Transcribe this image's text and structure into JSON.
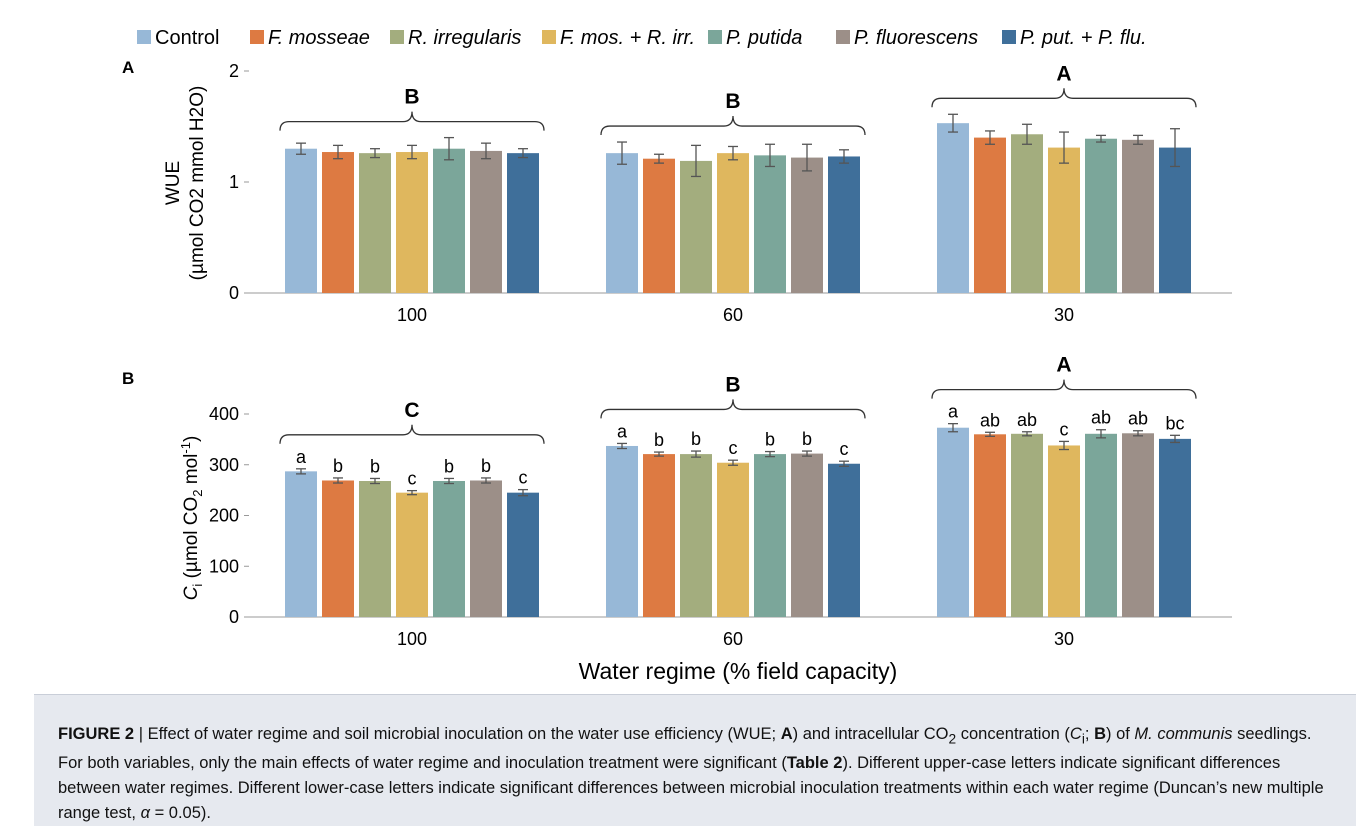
{
  "legend": [
    {
      "name": "Control",
      "color": "#97b8d7"
    },
    {
      "name": "F. mosseae",
      "color": "#dd7a42"
    },
    {
      "name": "R. irregularis",
      "color": "#a3ad7e"
    },
    {
      "name": "F. mos. + R. irr.",
      "color": "#dfb75e"
    },
    {
      "name": "P. putida",
      "color": "#7ba69a"
    },
    {
      "name": "P. fluorescens",
      "color": "#9c8f88"
    },
    {
      "name": "P. put. + P. flu.",
      "color": "#3f6f9a"
    }
  ],
  "chart_data": [
    {
      "type": "bar",
      "panel": "A",
      "ylabel_top": "WUE",
      "ylabel_bottom": "(µmol CO2 mmol H2O)",
      "yticks": [
        0,
        1,
        2
      ],
      "ylim": [
        0,
        2
      ],
      "categories": [
        "100",
        "60",
        "30"
      ],
      "group_letters": [
        "B",
        "B",
        "A"
      ],
      "series": [
        {
          "name": "Control",
          "values": [
            1.3,
            1.26,
            1.53
          ],
          "errors": [
            0.05,
            0.1,
            0.08
          ]
        },
        {
          "name": "F. mosseae",
          "values": [
            1.27,
            1.21,
            1.4
          ],
          "errors": [
            0.06,
            0.04,
            0.06
          ]
        },
        {
          "name": "R. irregularis",
          "values": [
            1.26,
            1.19,
            1.43
          ],
          "errors": [
            0.04,
            0.14,
            0.09
          ]
        },
        {
          "name": "F. mos. + R. irr.",
          "values": [
            1.27,
            1.26,
            1.31
          ],
          "errors": [
            0.06,
            0.06,
            0.14
          ]
        },
        {
          "name": "P. putida",
          "values": [
            1.3,
            1.24,
            1.39
          ],
          "errors": [
            0.1,
            0.1,
            0.03
          ]
        },
        {
          "name": "P. fluorescens",
          "values": [
            1.28,
            1.22,
            1.38
          ],
          "errors": [
            0.07,
            0.12,
            0.04
          ]
        },
        {
          "name": "P. put. + P. flu.",
          "values": [
            1.26,
            1.23,
            1.31
          ],
          "errors": [
            0.04,
            0.06,
            0.17
          ]
        }
      ]
    },
    {
      "type": "bar",
      "panel": "B",
      "ylabel": "Ci (µmol CO2 mol-1)",
      "ylabel_main": "C",
      "ylabel_sub": "i",
      "ylabel_mid": " (µmol CO",
      "ylabel_sub2": "2",
      "ylabel_mid2": " mol",
      "ylabel_sup": "-1",
      "ylabel_end": ")",
      "yticks": [
        0,
        100,
        200,
        300,
        400
      ],
      "ylim": [
        0,
        400
      ],
      "categories": [
        "100",
        "60",
        "30"
      ],
      "group_letters": [
        "C",
        "B",
        "A"
      ],
      "xlabel": "Water regime (% field capacity)",
      "series": [
        {
          "name": "Control",
          "values": [
            287,
            337,
            373
          ],
          "errors": [
            5,
            5,
            8
          ],
          "letters": [
            "a",
            "a",
            "a"
          ]
        },
        {
          "name": "F. mosseae",
          "values": [
            269,
            321,
            360
          ],
          "errors": [
            5,
            4,
            4
          ],
          "letters": [
            "b",
            "b",
            "ab"
          ]
        },
        {
          "name": "R. irregularis",
          "values": [
            268,
            321,
            361
          ],
          "errors": [
            5,
            6,
            4
          ],
          "letters": [
            "b",
            "b",
            "ab"
          ]
        },
        {
          "name": "F. mos. + R. irr.",
          "values": [
            245,
            304,
            338
          ],
          "errors": [
            4,
            5,
            8
          ],
          "letters": [
            "c",
            "c",
            "c"
          ]
        },
        {
          "name": "P. putida",
          "values": [
            268,
            321,
            361
          ],
          "errors": [
            5,
            5,
            8
          ],
          "letters": [
            "b",
            "b",
            "ab"
          ]
        },
        {
          "name": "P. fluorescens",
          "values": [
            269,
            322,
            362
          ],
          "errors": [
            5,
            5,
            5
          ],
          "letters": [
            "b",
            "b",
            "ab"
          ]
        },
        {
          "name": "P. put. + P. flu.",
          "values": [
            245,
            302,
            351
          ],
          "errors": [
            6,
            5,
            7
          ],
          "letters": [
            "c",
            "c",
            "bc"
          ]
        }
      ]
    }
  ],
  "caption": {
    "label": "FIGURE 2",
    "sep": " | ",
    "t1": "Effect of water regime and soil microbial inoculation on the water use efficiency (WUE; ",
    "bA": "A",
    "t2": ") and intracellular CO",
    "sub2": "2",
    "t3": " concentration (",
    "ci": "C",
    "ci_sub": "i",
    "t4": "; ",
    "bB": "B",
    "t5": ") of ",
    "species": "M. communis",
    "t6": " seedlings. For both variables, only the main effects of water regime and inoculation treatment were significant (",
    "table": "Table 2",
    "t7": "). Different upper-case letters indicate significant differences between water regimes. Different lower-case letters indicate significant differences between microbial inoculation treatments within each water regime (Duncan’s new multiple range test, ",
    "alpha": "α",
    "t8": " = 0.05)."
  }
}
